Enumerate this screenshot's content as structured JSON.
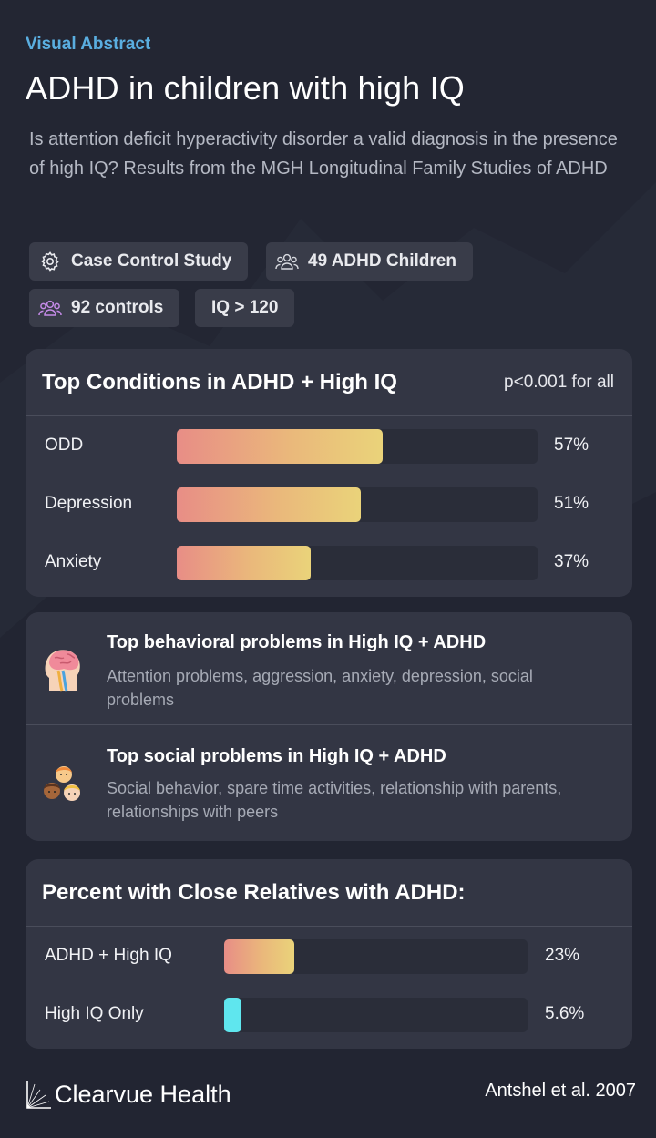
{
  "header": {
    "eyebrow": "Visual Abstract",
    "title": "ADHD in children with high IQ",
    "subtitle": "Is attention deficit hyperactivity disorder a valid diagnosis in the presence of high IQ? Results from the MGH Longitudinal Family Studies of ADHD"
  },
  "chips": [
    {
      "label": "Case Control Study",
      "icon": "gear-icon"
    },
    {
      "label": "49 ADHD Children",
      "icon": "people-icon"
    },
    {
      "label": "92 controls",
      "icon": "people-icon"
    },
    {
      "label": "IQ > 120",
      "icon": ""
    }
  ],
  "conditions": {
    "title": "Top Conditions in ADHD + High IQ",
    "note": "p<0.001 for all"
  },
  "relatives": {
    "title": "Percent with Close Relatives with ADHD:"
  },
  "problems": [
    {
      "icon": "brain-head-icon",
      "title": "Top behavioral problems in High IQ + ADHD",
      "desc": "Attention problems, aggression, anxiety, depression, social problems"
    },
    {
      "icon": "children-icon",
      "title": "Top social problems in High IQ + ADHD",
      "desc": "Social behavior, spare time activities, relationship with parents, relationships with peers"
    }
  ],
  "chart_data": [
    {
      "type": "bar",
      "orientation": "horizontal",
      "title": "Top Conditions in ADHD + High IQ",
      "categories": [
        "ODD",
        "Depression",
        "Anxiety"
      ],
      "values": [
        57,
        51,
        37
      ],
      "value_labels": [
        "57%",
        "51%",
        "37%"
      ],
      "xlim": [
        0,
        100
      ]
    },
    {
      "type": "bar",
      "orientation": "horizontal",
      "title": "Percent with Close Relatives with ADHD:",
      "categories": [
        "ADHD + High IQ",
        "High IQ Only"
      ],
      "values": [
        23,
        5.6
      ],
      "value_labels": [
        "23%",
        "5.6%"
      ],
      "xlim": [
        0,
        100
      ]
    }
  ],
  "footer": {
    "brand": "Clearvue Health",
    "citation": "Antshel et al. 2007"
  },
  "colors": {
    "background": "#232633",
    "card": "#333644",
    "accent": "#5aaee0",
    "bar_gradient_start": "#e88d86",
    "bar_gradient_end": "#ead37a",
    "bar_alt": "#5fe6ee"
  }
}
